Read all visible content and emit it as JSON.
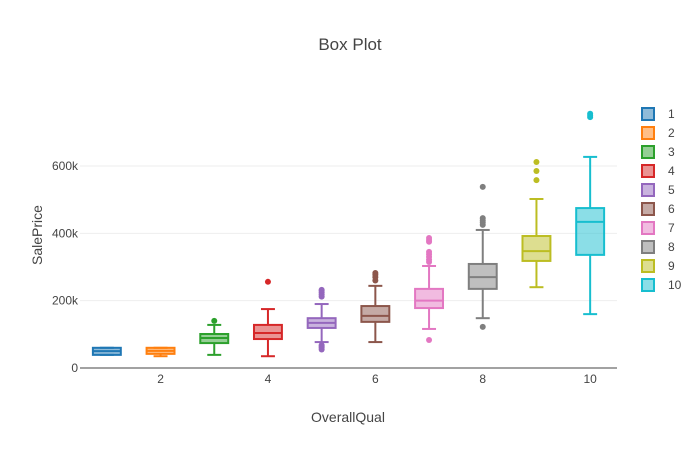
{
  "chart_data": {
    "type": "box",
    "title": "Box Plot",
    "xlabel": "OverallQual",
    "ylabel": "SalePrice",
    "xlim": [
      0.5,
      10.5
    ],
    "ylim": [
      0,
      796000
    ],
    "x_ticks": [
      2,
      4,
      6,
      8,
      10
    ],
    "x_tick_labels": [
      "2",
      "4",
      "6",
      "8",
      "10"
    ],
    "y_ticks": [
      0,
      200000,
      400000,
      600000
    ],
    "y_tick_labels": [
      "0",
      "200k",
      "400k",
      "600k"
    ],
    "grid": true,
    "legend_position": "right",
    "series": [
      {
        "name": "1",
        "x": 1,
        "color": "#1f77b4",
        "lower": 39000,
        "q1": 39000,
        "median": 50000,
        "q3": 60000,
        "upper": 60000,
        "outliers": []
      },
      {
        "name": "2",
        "x": 2,
        "color": "#ff7f0e",
        "lower": 35000,
        "q1": 42000,
        "median": 51000,
        "q3": 60000,
        "upper": 60000,
        "outliers": []
      },
      {
        "name": "3",
        "x": 3,
        "color": "#2ca02c",
        "lower": 39000,
        "q1": 74000,
        "median": 89000,
        "q3": 101000,
        "upper": 128000,
        "outliers": [
          140000
        ]
      },
      {
        "name": "4",
        "x": 4,
        "color": "#d62728",
        "lower": 35000,
        "q1": 86000,
        "median": 104000,
        "q3": 128000,
        "upper": 175000,
        "outliers": [
          256000
        ]
      },
      {
        "name": "5",
        "x": 5,
        "color": "#9467bd",
        "lower": 77000,
        "q1": 119000,
        "median": 134000,
        "q3": 148000,
        "upper": 190000,
        "outliers": [
          55000,
          60000,
          64000,
          68000,
          212000,
          218000,
          224000,
          229000,
          232000
        ]
      },
      {
        "name": "6",
        "x": 6,
        "color": "#8c564b",
        "lower": 77000,
        "q1": 137000,
        "median": 155000,
        "q3": 184000,
        "upper": 244000,
        "outliers": [
          260000,
          270000,
          277000,
          282000
        ]
      },
      {
        "name": "7",
        "x": 7,
        "color": "#e377c2",
        "lower": 116000,
        "q1": 178000,
        "median": 200000,
        "q3": 235000,
        "upper": 303000,
        "outliers": [
          83000,
          315000,
          322000,
          330000,
          338000,
          345000,
          375000,
          380000,
          386000
        ]
      },
      {
        "name": "8",
        "x": 8,
        "color": "#7f7f7f",
        "lower": 148000,
        "q1": 235000,
        "median": 270000,
        "q3": 309000,
        "upper": 410000,
        "outliers": [
          122000,
          425000,
          432000,
          438000,
          445000,
          538000
        ]
      },
      {
        "name": "9",
        "x": 9,
        "color": "#bcbd22",
        "lower": 240000,
        "q1": 318000,
        "median": 347000,
        "q3": 392000,
        "upper": 502000,
        "outliers": [
          558000,
          585000,
          612000
        ]
      },
      {
        "name": "10",
        "x": 10,
        "color": "#17becf",
        "lower": 160000,
        "q1": 336000,
        "median": 434000,
        "q3": 475000,
        "upper": 627000,
        "outliers": [
          745000,
          750000,
          755000
        ]
      }
    ]
  }
}
